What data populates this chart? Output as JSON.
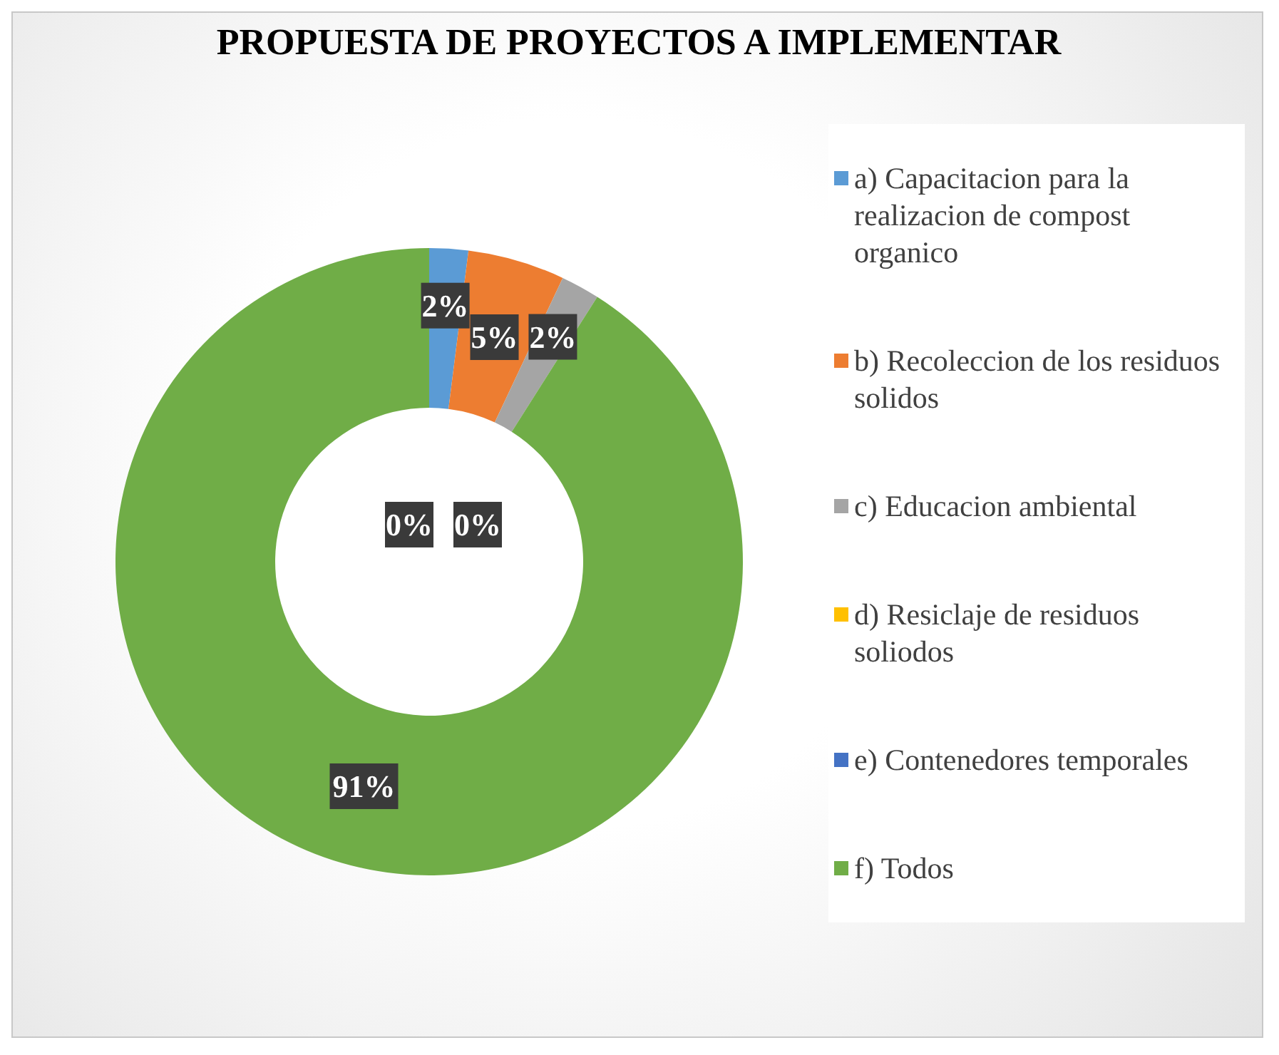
{
  "chart_data": {
    "type": "donut",
    "title": "PROPUESTA DE PROYECTOS A IMPLEMENTAR",
    "categories": [
      "a) Capacitacion para la realizacion de compost organico",
      "b) Recoleccion de los residuos solidos",
      "c) Educacion ambiental",
      "d) Resiclaje de residuos soliodos",
      "e) Contenedores temporales",
      "f) Todos"
    ],
    "values": [
      2,
      5,
      2,
      0,
      0,
      91
    ],
    "value_labels": [
      "2%",
      "5%",
      "2%",
      "0%",
      "0%",
      "91%"
    ],
    "colors": [
      "#5b9bd5",
      "#ed7d31",
      "#a5a5a5",
      "#ffc000",
      "#4472c4",
      "#70ad47"
    ],
    "legend": "right"
  }
}
